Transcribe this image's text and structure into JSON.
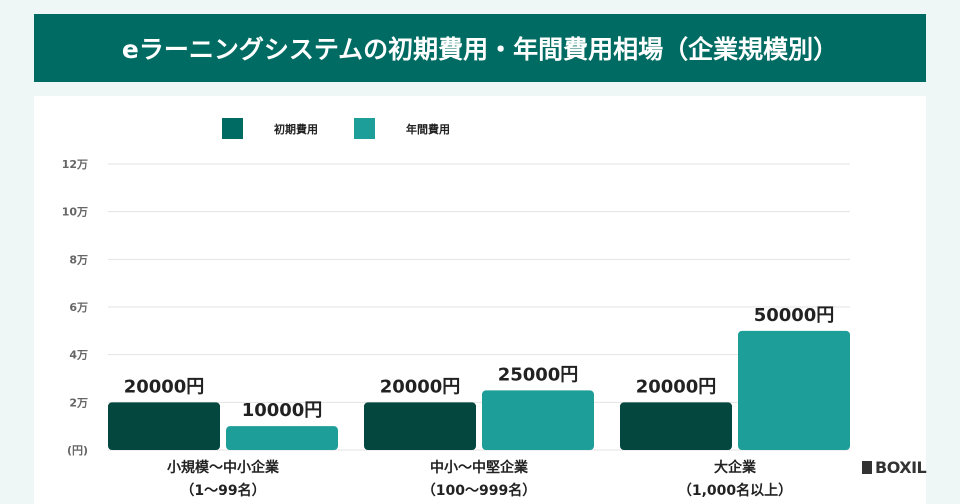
{
  "title": "eラーニングシステムの初期費用・年間費用相場（企業規模別）",
  "logo": "BOXIL",
  "colors": {
    "initial": "#03473f",
    "annual": "#1e9e99",
    "legend_initial": "#006b63",
    "header": "#006b62"
  },
  "chart_data": {
    "type": "bar",
    "title": "eラーニングシステムの初期費用・年間費用相場（企業規模別）",
    "categories": [
      [
        "小規模〜中小企業",
        "（1〜99名）"
      ],
      [
        "中小〜中堅企業",
        "（100〜999名）"
      ],
      [
        "大企業",
        "（1,000名以上）"
      ]
    ],
    "series": [
      {
        "name": "初期費用",
        "values": [
          20000,
          20000,
          20000
        ],
        "labels": [
          "20000円",
          "20000円",
          "20000円"
        ]
      },
      {
        "name": "年間費用",
        "values": [
          10000,
          25000,
          50000
        ],
        "labels": [
          "10000円",
          "25000円",
          "50000円"
        ]
      }
    ],
    "yticks": [
      0,
      20000,
      40000,
      60000,
      80000,
      100000,
      120000
    ],
    "ytick_labels": [
      "(円)",
      "2万",
      "4万",
      "6万",
      "8万",
      "10万",
      "12万"
    ],
    "ylim": [
      0,
      120000
    ],
    "grid": true,
    "legend": "top"
  }
}
